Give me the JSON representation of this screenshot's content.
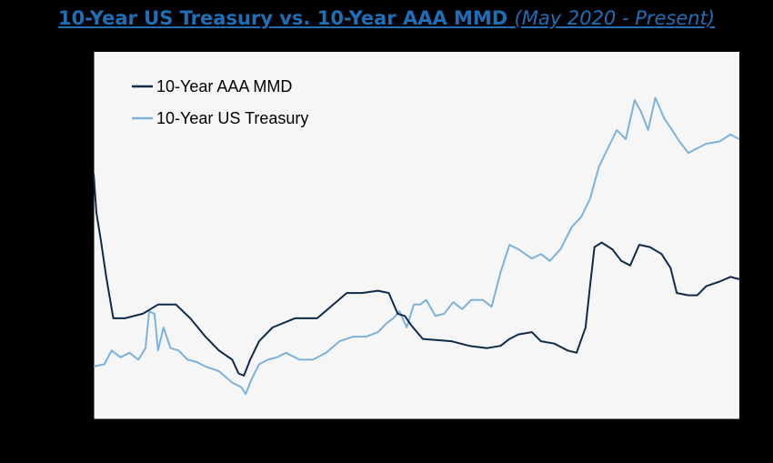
{
  "chart_data": {
    "type": "line",
    "title": "10-Year US Treasury vs. 10-Year AAA MMD",
    "subtitle": "(May 2020 - Present)",
    "xlabel": "",
    "ylabel": "",
    "legend_position": "top-left",
    "grid": false,
    "colors": {
      "mmd": "#0f2a4a",
      "treasury": "#7bb2de",
      "plot_bg": "#f6f6f6",
      "title": "#1f6fb8"
    },
    "x_tick_count": 5,
    "y_tick_count": 8,
    "ylim": [
      0,
      8
    ],
    "series": [
      {
        "name": "10-Year AAA MMD",
        "color": "#0f2a4a",
        "values": [
          [
            0,
            5.35
          ],
          [
            3,
            4.5
          ],
          [
            8,
            3.9
          ],
          [
            14,
            3.1
          ],
          [
            22,
            2.2
          ],
          [
            35,
            2.2
          ],
          [
            55,
            2.3
          ],
          [
            72,
            2.5
          ],
          [
            92,
            2.5
          ],
          [
            108,
            2.2
          ],
          [
            125,
            1.8
          ],
          [
            140,
            1.5
          ],
          [
            155,
            1.3
          ],
          [
            162,
            1.0
          ],
          [
            168,
            0.95
          ],
          [
            175,
            1.3
          ],
          [
            185,
            1.7
          ],
          [
            200,
            2.0
          ],
          [
            225,
            2.2
          ],
          [
            250,
            2.2
          ],
          [
            268,
            2.5
          ],
          [
            283,
            2.75
          ],
          [
            300,
            2.75
          ],
          [
            318,
            2.8
          ],
          [
            330,
            2.75
          ],
          [
            340,
            2.3
          ],
          [
            348,
            2.25
          ],
          [
            355,
            2.05
          ],
          [
            368,
            1.75
          ],
          [
            400,
            1.7
          ],
          [
            420,
            1.6
          ],
          [
            440,
            1.55
          ],
          [
            455,
            1.6
          ],
          [
            465,
            1.75
          ],
          [
            475,
            1.85
          ],
          [
            490,
            1.9
          ],
          [
            500,
            1.7
          ],
          [
            515,
            1.65
          ],
          [
            530,
            1.5
          ],
          [
            540,
            1.45
          ],
          [
            550,
            2.0
          ],
          [
            555,
            2.9
          ],
          [
            560,
            3.75
          ],
          [
            568,
            3.85
          ],
          [
            580,
            3.7
          ],
          [
            590,
            3.45
          ],
          [
            600,
            3.35
          ],
          [
            610,
            3.8
          ],
          [
            622,
            3.75
          ],
          [
            635,
            3.6
          ],
          [
            645,
            3.3
          ],
          [
            652,
            2.75
          ],
          [
            665,
            2.7
          ],
          [
            675,
            2.7
          ],
          [
            685,
            2.9
          ],
          [
            700,
            3.0
          ],
          [
            712,
            3.1
          ],
          [
            722,
            3.05
          ]
        ]
      },
      {
        "name": "10-Year US Treasury",
        "color": "#7bb2de",
        "values": [
          [
            0,
            1.15
          ],
          [
            12,
            1.2
          ],
          [
            20,
            1.5
          ],
          [
            30,
            1.35
          ],
          [
            40,
            1.45
          ],
          [
            50,
            1.3
          ],
          [
            58,
            1.55
          ],
          [
            62,
            2.35
          ],
          [
            68,
            2.3
          ],
          [
            72,
            1.5
          ],
          [
            78,
            2.0
          ],
          [
            86,
            1.55
          ],
          [
            95,
            1.5
          ],
          [
            105,
            1.3
          ],
          [
            115,
            1.25
          ],
          [
            125,
            1.15
          ],
          [
            140,
            1.05
          ],
          [
            155,
            0.8
          ],
          [
            165,
            0.7
          ],
          [
            170,
            0.55
          ],
          [
            176,
            0.85
          ],
          [
            185,
            1.2
          ],
          [
            195,
            1.3
          ],
          [
            205,
            1.35
          ],
          [
            215,
            1.45
          ],
          [
            230,
            1.3
          ],
          [
            245,
            1.3
          ],
          [
            260,
            1.45
          ],
          [
            275,
            1.7
          ],
          [
            290,
            1.8
          ],
          [
            305,
            1.8
          ],
          [
            318,
            1.9
          ],
          [
            328,
            2.1
          ],
          [
            335,
            2.2
          ],
          [
            342,
            2.35
          ],
          [
            350,
            2.0
          ],
          [
            358,
            2.5
          ],
          [
            365,
            2.5
          ],
          [
            372,
            2.6
          ],
          [
            382,
            2.25
          ],
          [
            392,
            2.3
          ],
          [
            402,
            2.55
          ],
          [
            412,
            2.4
          ],
          [
            422,
            2.6
          ],
          [
            435,
            2.6
          ],
          [
            445,
            2.45
          ],
          [
            455,
            3.2
          ],
          [
            465,
            3.8
          ],
          [
            475,
            3.7
          ],
          [
            490,
            3.5
          ],
          [
            500,
            3.6
          ],
          [
            510,
            3.45
          ],
          [
            522,
            3.7
          ],
          [
            535,
            4.2
          ],
          [
            545,
            4.4
          ],
          [
            555,
            4.8
          ],
          [
            565,
            5.5
          ],
          [
            575,
            5.9
          ],
          [
            585,
            6.3
          ],
          [
            595,
            6.1
          ],
          [
            605,
            6.95
          ],
          [
            612,
            6.7
          ],
          [
            620,
            6.3
          ],
          [
            628,
            7.0
          ],
          [
            638,
            6.55
          ],
          [
            645,
            6.35
          ],
          [
            655,
            6.05
          ],
          [
            665,
            5.8
          ],
          [
            675,
            5.9
          ],
          [
            685,
            6.0
          ],
          [
            700,
            6.05
          ],
          [
            712,
            6.2
          ],
          [
            722,
            6.1
          ]
        ]
      }
    ]
  }
}
